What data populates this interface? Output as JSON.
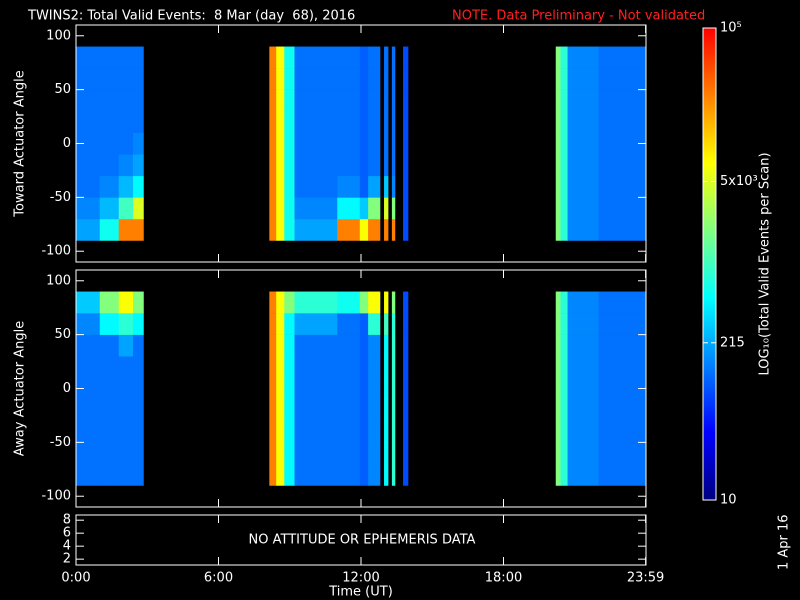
{
  "header": {
    "title": "TWINS2: Total Valid Events:  8 Mar (day  68), 2016",
    "note": "NOTE. Data Preliminary - Not validated"
  },
  "stamp": "1 Apr 16",
  "chart_data": [
    {
      "type": "heatmap",
      "ylabel": "Toward Actuator Angle",
      "xlim": [
        0,
        24
      ],
      "ylim": [
        -110,
        110
      ],
      "yticks": [
        -100,
        -50,
        0,
        50,
        100
      ],
      "xbins": [
        0,
        1.0,
        1.8,
        2.4,
        2.84,
        8.14,
        8.43,
        8.77,
        9.2,
        11.0,
        11.95,
        12.3,
        12.8,
        12.97,
        13.14,
        13.3,
        13.43,
        13.77,
        13.98,
        20.2,
        20.4,
        20.7,
        22.0,
        23.98
      ],
      "ybins": [
        -90,
        -70,
        -50,
        -30,
        -10,
        10,
        30,
        50,
        70,
        90
      ],
      "values": [
        [
          200,
          150,
          120,
          120,
          120,
          120,
          120,
          120,
          120
        ],
        [
          600,
          250,
          150,
          120,
          120,
          120,
          120,
          120,
          120
        ],
        [
          27000,
          1000,
          250,
          150,
          120,
          120,
          120,
          120,
          120
        ],
        [
          27000,
          5000,
          500,
          200,
          150,
          120,
          120,
          120,
          120
        ],
        null,
        [
          27000,
          27000,
          27000,
          27000,
          27000,
          27000,
          27000,
          27000,
          27000
        ],
        [
          7000,
          7000,
          7000,
          7000,
          7000,
          7000,
          7000,
          7000,
          7000
        ],
        [
          600,
          600,
          600,
          600,
          600,
          600,
          600,
          600,
          600
        ],
        [
          200,
          150,
          120,
          120,
          120,
          120,
          120,
          120,
          120
        ],
        [
          27000,
          500,
          150,
          120,
          120,
          120,
          120,
          120,
          120
        ],
        [
          7000,
          300,
          100,
          100,
          100,
          100,
          100,
          100,
          100
        ],
        [
          27000,
          2000,
          200,
          120,
          120,
          120,
          120,
          120,
          120
        ],
        null,
        [
          27000,
          5000,
          300,
          120,
          120,
          120,
          120,
          120,
          120
        ],
        null,
        [
          27000,
          2000,
          150,
          120,
          120,
          120,
          120,
          120,
          120
        ],
        null,
        [
          80,
          80,
          80,
          80,
          80,
          80,
          80,
          80,
          80
        ],
        null,
        [
          2000,
          2000,
          2000,
          2000,
          2000,
          2000,
          2000,
          2000,
          2000
        ],
        [
          800,
          800,
          800,
          800,
          800,
          800,
          800,
          800,
          800
        ],
        [
          150,
          150,
          150,
          150,
          150,
          150,
          150,
          150,
          150
        ],
        [
          120,
          120,
          120,
          120,
          120,
          120,
          120,
          120,
          120
        ]
      ]
    },
    {
      "type": "heatmap",
      "ylabel": "Away Actuator Angle",
      "xlim": [
        0,
        24
      ],
      "ylim": [
        -110,
        110
      ],
      "yticks": [
        -100,
        -50,
        0,
        50,
        100
      ],
      "xbins": [
        0,
        1.0,
        1.8,
        2.4,
        2.84,
        8.14,
        8.43,
        8.77,
        9.2,
        11.0,
        11.95,
        12.3,
        12.8,
        12.97,
        13.14,
        13.3,
        13.43,
        13.77,
        13.98,
        20.2,
        20.4,
        20.7,
        22.0,
        23.98
      ],
      "ybins": [
        -90,
        -70,
        -50,
        -30,
        -10,
        10,
        30,
        50,
        70,
        90
      ],
      "values": [
        [
          120,
          120,
          120,
          120,
          120,
          120,
          120,
          150,
          300
        ],
        [
          120,
          120,
          120,
          120,
          120,
          120,
          120,
          500,
          2000
        ],
        [
          120,
          120,
          120,
          120,
          120,
          120,
          200,
          800,
          7000
        ],
        [
          120,
          120,
          120,
          120,
          120,
          120,
          120,
          500,
          2000
        ],
        null,
        [
          27000,
          27000,
          27000,
          27000,
          27000,
          27000,
          27000,
          27000,
          27000
        ],
        [
          7000,
          7000,
          7000,
          7000,
          7000,
          7000,
          7000,
          7000,
          7000
        ],
        [
          500,
          500,
          500,
          500,
          500,
          500,
          500,
          500,
          2000
        ],
        [
          120,
          120,
          120,
          120,
          120,
          120,
          120,
          200,
          800
        ],
        [
          120,
          120,
          120,
          120,
          120,
          120,
          120,
          120,
          600
        ],
        [
          100,
          100,
          100,
          100,
          100,
          100,
          100,
          100,
          2000
        ],
        [
          150,
          150,
          150,
          150,
          150,
          150,
          150,
          800,
          7000
        ],
        null,
        [
          500,
          500,
          500,
          500,
          500,
          500,
          500,
          1000,
          7000
        ],
        null,
        [
          800,
          800,
          800,
          800,
          800,
          800,
          800,
          800,
          2000
        ],
        null,
        [
          80,
          80,
          80,
          80,
          80,
          80,
          80,
          80,
          80
        ],
        null,
        [
          2000,
          2000,
          2000,
          2000,
          2000,
          2000,
          2000,
          2000,
          2000
        ],
        [
          800,
          800,
          800,
          800,
          800,
          800,
          800,
          800,
          800
        ],
        [
          150,
          150,
          150,
          150,
          150,
          150,
          150,
          150,
          150
        ],
        [
          120,
          120,
          120,
          120,
          120,
          120,
          120,
          120,
          120
        ]
      ]
    },
    {
      "type": "line",
      "series": [],
      "annotation": "NO ATTITUDE OR EPHEMERIS DATA",
      "xlabel": "Time (UT)",
      "xlim": [
        0,
        24
      ],
      "ylim": [
        1.1,
        8.8
      ],
      "yticks": [
        2,
        4,
        6,
        8
      ],
      "xticks": [
        {
          "value": 0,
          "label": "0:00"
        },
        {
          "value": 6,
          "label": "6:00"
        },
        {
          "value": 12,
          "label": "12:00"
        },
        {
          "value": 18,
          "label": "18:00"
        },
        {
          "value": 23.983,
          "label": "23:59"
        }
      ]
    },
    {
      "type": "colorbar",
      "label": "LOG₁₀(Total Valid Events per Scan)",
      "log": true,
      "lim": [
        10,
        100000
      ],
      "ticks": [
        10,
        215,
        {
          "value": 5000,
          "label": "5x10³"
        },
        {
          "value": 100000,
          "label": "10⁵"
        }
      ],
      "colors": [
        "#000080",
        "#0000ff",
        "#0080ff",
        "#00ffff",
        "#80ff80",
        "#ffff00",
        "#ff8000",
        "#ff0000"
      ]
    }
  ]
}
